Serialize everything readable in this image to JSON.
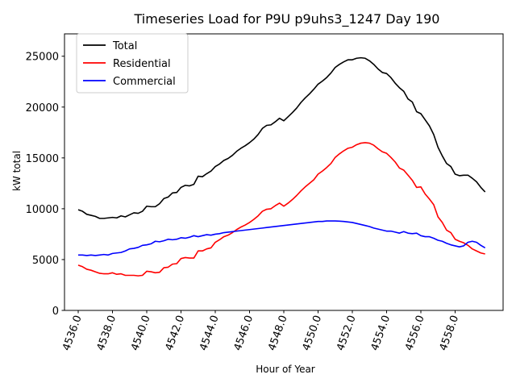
{
  "chart_data": {
    "type": "line",
    "title": "Timeseries Load for P9U p9uhs3_1247  Day 190",
    "xlabel": "Hour of Year",
    "ylabel": "kW total",
    "xlim": [
      4535.2,
      4560.8
    ],
    "ylim": [
      0,
      27200
    ],
    "xticks": [
      4536,
      4538,
      4540,
      4542,
      4544,
      4546,
      4548,
      4550,
      4552,
      4554,
      4556,
      4558
    ],
    "xtick_labels": [
      "4536.0",
      "4538.0",
      "4540.0",
      "4542.0",
      "4544.0",
      "4546.0",
      "4548.0",
      "4550.0",
      "4552.0",
      "4554.0",
      "4556.0",
      "4558.0"
    ],
    "yticks": [
      0,
      5000,
      10000,
      15000,
      20000,
      25000
    ],
    "ytick_labels": [
      "0",
      "5000",
      "10000",
      "15000",
      "20000",
      "25000"
    ],
    "legend_position": "top-left",
    "grid": false,
    "series": [
      {
        "name": "Total",
        "color": "#000000",
        "x": [
          4536,
          4536.25,
          4536.5,
          4536.75,
          4537,
          4537.25,
          4537.5,
          4537.75,
          4538,
          4538.25,
          4538.5,
          4538.75,
          4539,
          4539.25,
          4539.5,
          4539.75,
          4540,
          4540.25,
          4540.5,
          4540.75,
          4541,
          4541.25,
          4541.5,
          4541.75,
          4542,
          4542.25,
          4542.5,
          4542.75,
          4543,
          4543.25,
          4543.5,
          4543.75,
          4544,
          4544.25,
          4544.5,
          4544.75,
          4545,
          4545.25,
          4545.5,
          4545.75,
          4546,
          4546.25,
          4546.5,
          4546.75,
          4547,
          4547.25,
          4547.5,
          4547.75,
          4548,
          4548.25,
          4548.5,
          4548.75,
          4549,
          4549.25,
          4549.5,
          4549.75,
          4550,
          4550.25,
          4550.5,
          4550.75,
          4551,
          4551.25,
          4551.5,
          4551.75,
          4552,
          4552.25,
          4552.5,
          4552.75,
          4553,
          4553.25,
          4553.5,
          4553.75,
          4554,
          4554.25,
          4554.5,
          4554.75,
          4555,
          4555.25,
          4555.5,
          4555.75,
          4556,
          4556.25,
          4556.5,
          4556.75,
          4557,
          4557.25,
          4557.5,
          4557.75,
          4558,
          4558.25,
          4558.5,
          4558.75,
          4559,
          4559.25,
          4559.5,
          4559.75
        ],
        "values": [
          9900,
          9750,
          9450,
          9350,
          9250,
          9050,
          9050,
          9100,
          9150,
          9100,
          9300,
          9200,
          9400,
          9600,
          9550,
          9750,
          10250,
          10200,
          10200,
          10500,
          11000,
          11150,
          11550,
          11600,
          12100,
          12300,
          12250,
          12400,
          13200,
          13150,
          13450,
          13700,
          14150,
          14400,
          14750,
          14950,
          15250,
          15650,
          15950,
          16200,
          16500,
          16850,
          17300,
          17900,
          18200,
          18250,
          18550,
          18900,
          18650,
          19050,
          19450,
          19900,
          20450,
          20900,
          21300,
          21750,
          22250,
          22550,
          22900,
          23350,
          23900,
          24200,
          24450,
          24650,
          24650,
          24800,
          24850,
          24800,
          24550,
          24200,
          23750,
          23400,
          23300,
          22900,
          22350,
          21900,
          21550,
          20800,
          20500,
          19550,
          19350,
          18750,
          18150,
          17300,
          16050,
          15200,
          14450,
          14150,
          13400,
          13250,
          13300,
          13300,
          13000,
          12650,
          12100,
          11650
        ]
      },
      {
        "name": "Residential",
        "color": "#ff0000",
        "x": [
          4536,
          4536.25,
          4536.5,
          4536.75,
          4537,
          4537.25,
          4537.5,
          4537.75,
          4538,
          4538.25,
          4538.5,
          4538.75,
          4539,
          4539.25,
          4539.5,
          4539.75,
          4540,
          4540.25,
          4540.5,
          4540.75,
          4541,
          4541.25,
          4541.5,
          4541.75,
          4542,
          4542.25,
          4542.5,
          4542.75,
          4543,
          4543.25,
          4543.5,
          4543.75,
          4544,
          4544.25,
          4544.5,
          4544.75,
          4545,
          4545.25,
          4545.5,
          4545.75,
          4546,
          4546.25,
          4546.5,
          4546.75,
          4547,
          4547.25,
          4547.5,
          4547.75,
          4548,
          4548.25,
          4548.5,
          4548.75,
          4549,
          4549.25,
          4549.5,
          4549.75,
          4550,
          4550.25,
          4550.5,
          4550.75,
          4551,
          4551.25,
          4551.5,
          4551.75,
          4552,
          4552.25,
          4552.5,
          4552.75,
          4553,
          4553.25,
          4553.5,
          4553.75,
          4554,
          4554.25,
          4554.5,
          4554.75,
          4555,
          4555.25,
          4555.5,
          4555.75,
          4556,
          4556.25,
          4556.5,
          4556.75,
          4557,
          4557.25,
          4557.5,
          4557.75,
          4558,
          4558.25,
          4558.5,
          4558.75,
          4559,
          4559.25,
          4559.5,
          4559.75
        ],
        "values": [
          4450,
          4300,
          4050,
          3950,
          3800,
          3650,
          3600,
          3600,
          3700,
          3550,
          3600,
          3450,
          3450,
          3450,
          3400,
          3450,
          3850,
          3800,
          3700,
          3750,
          4200,
          4250,
          4550,
          4600,
          5100,
          5200,
          5150,
          5150,
          5850,
          5850,
          6050,
          6150,
          6700,
          6950,
          7250,
          7400,
          7650,
          7950,
          8200,
          8400,
          8650,
          8950,
          9300,
          9750,
          9950,
          10000,
          10300,
          10550,
          10250,
          10550,
          10900,
          11300,
          11750,
          12150,
          12500,
          12850,
          13400,
          13700,
          14050,
          14450,
          15050,
          15400,
          15700,
          15950,
          16050,
          16300,
          16450,
          16500,
          16450,
          16250,
          15900,
          15600,
          15450,
          15050,
          14600,
          14000,
          13800,
          13300,
          12800,
          12100,
          12150,
          11450,
          10950,
          10400,
          9200,
          8650,
          7900,
          7650,
          7000,
          6800,
          6650,
          6400,
          6050,
          5850,
          5650,
          5550
        ]
      },
      {
        "name": "Commercial",
        "color": "#0000ff",
        "x": [
          4536,
          4536.25,
          4536.5,
          4536.75,
          4537,
          4537.25,
          4537.5,
          4537.75,
          4538,
          4538.25,
          4538.5,
          4538.75,
          4539,
          4539.25,
          4539.5,
          4539.75,
          4540,
          4540.25,
          4540.5,
          4540.75,
          4541,
          4541.25,
          4541.5,
          4541.75,
          4542,
          4542.25,
          4542.5,
          4542.75,
          4543,
          4543.25,
          4543.5,
          4543.75,
          4544,
          4544.25,
          4544.5,
          4544.75,
          4545,
          4545.25,
          4545.5,
          4545.75,
          4546,
          4546.25,
          4546.5,
          4546.75,
          4547,
          4547.25,
          4547.5,
          4547.75,
          4548,
          4548.25,
          4548.5,
          4548.75,
          4549,
          4549.25,
          4549.5,
          4549.75,
          4550,
          4550.25,
          4550.5,
          4550.75,
          4551,
          4551.25,
          4551.5,
          4551.75,
          4552,
          4552.25,
          4552.5,
          4552.75,
          4553,
          4553.25,
          4553.5,
          4553.75,
          4554,
          4554.25,
          4554.5,
          4554.75,
          4555,
          4555.25,
          4555.5,
          4555.75,
          4556,
          4556.25,
          4556.5,
          4556.75,
          4557,
          4557.25,
          4557.5,
          4557.75,
          4558,
          4558.25,
          4558.5,
          4558.75,
          4559,
          4559.25,
          4559.5,
          4559.75
        ],
        "values": [
          5450,
          5450,
          5400,
          5450,
          5400,
          5450,
          5500,
          5450,
          5600,
          5650,
          5700,
          5850,
          6050,
          6100,
          6200,
          6400,
          6450,
          6550,
          6800,
          6750,
          6850,
          7000,
          6950,
          7000,
          7150,
          7100,
          7200,
          7350,
          7250,
          7350,
          7450,
          7400,
          7500,
          7550,
          7650,
          7700,
          7750,
          7800,
          7850,
          7900,
          7950,
          8000,
          8050,
          8100,
          8150,
          8200,
          8250,
          8300,
          8350,
          8400,
          8450,
          8500,
          8550,
          8600,
          8650,
          8700,
          8750,
          8750,
          8800,
          8800,
          8800,
          8780,
          8750,
          8700,
          8650,
          8550,
          8450,
          8350,
          8250,
          8100,
          8000,
          7900,
          7800,
          7800,
          7700,
          7600,
          7750,
          7600,
          7550,
          7600,
          7350,
          7250,
          7250,
          7100,
          6900,
          6800,
          6600,
          6450,
          6350,
          6250,
          6350,
          6700,
          6800,
          6700,
          6400,
          6150
        ]
      }
    ]
  }
}
